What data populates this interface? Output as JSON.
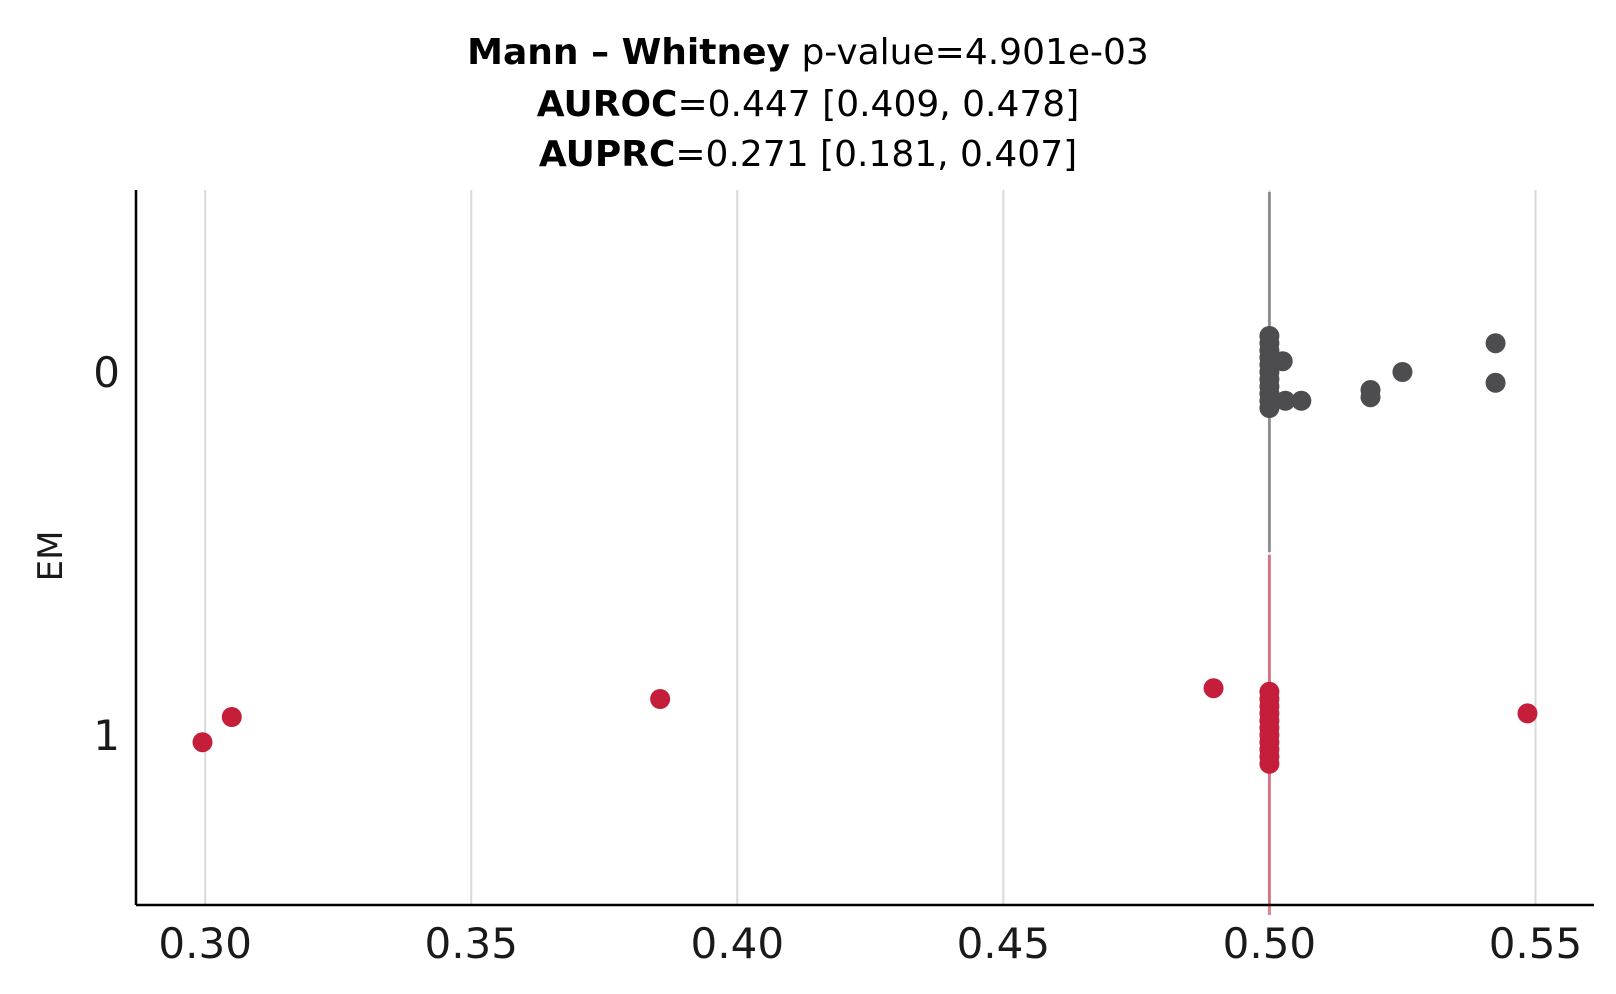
{
  "chart_data": {
    "type": "scatter",
    "subtype": "strip-plot",
    "title_lines": [
      {
        "bold": "Mann – Whitney",
        "rest": " p-value=4.901e-03"
      },
      {
        "bold": "AUROC",
        "rest": "=0.447 [0.409, 0.478]"
      },
      {
        "bold": "AUPRC",
        "rest": "=0.271 [0.181, 0.407]"
      }
    ],
    "xlabel": "",
    "ylabel": "EM",
    "xlim": [
      0.287,
      0.561
    ],
    "xticks": [
      0.3,
      0.35,
      0.4,
      0.45,
      0.5,
      0.55
    ],
    "xtick_labels": [
      "0.30",
      "0.35",
      "0.40",
      "0.45",
      "0.50",
      "0.55"
    ],
    "categories": [
      "0",
      "1"
    ],
    "grid": "vertical",
    "median_lines": [
      {
        "category": "0",
        "x": 0.5
      },
      {
        "category": "1",
        "x": 0.5
      }
    ],
    "series": [
      {
        "category": "0",
        "color": "#4d4d50",
        "points": [
          {
            "x": 0.5,
            "jitter": -0.08
          },
          {
            "x": 0.5,
            "jitter": -0.06
          },
          {
            "x": 0.5,
            "jitter": -0.04
          },
          {
            "x": 0.5,
            "jitter": -0.02
          },
          {
            "x": 0.5,
            "jitter": 0.0
          },
          {
            "x": 0.5,
            "jitter": 0.02
          },
          {
            "x": 0.5,
            "jitter": 0.04
          },
          {
            "x": 0.5,
            "jitter": 0.06
          },
          {
            "x": 0.5,
            "jitter": 0.08
          },
          {
            "x": 0.5,
            "jitter": 0.1
          },
          {
            "x": 0.5,
            "jitter": -0.1
          },
          {
            "x": 0.5025,
            "jitter": -0.03
          },
          {
            "x": 0.503,
            "jitter": 0.08
          },
          {
            "x": 0.506,
            "jitter": 0.08
          },
          {
            "x": 0.519,
            "jitter": 0.05
          },
          {
            "x": 0.519,
            "jitter": 0.07
          },
          {
            "x": 0.525,
            "jitter": 0.0
          },
          {
            "x": 0.5425,
            "jitter": -0.08
          },
          {
            "x": 0.5425,
            "jitter": 0.03
          }
        ]
      },
      {
        "category": "1",
        "color": "#c41e3a",
        "points": [
          {
            "x": 0.2995,
            "jitter": 0.02
          },
          {
            "x": 0.305,
            "jitter": -0.05
          },
          {
            "x": 0.3855,
            "jitter": -0.1
          },
          {
            "x": 0.4895,
            "jitter": -0.13
          },
          {
            "x": 0.5485,
            "jitter": -0.06
          },
          {
            "x": 0.5,
            "jitter": -0.12
          },
          {
            "x": 0.5,
            "jitter": -0.1
          },
          {
            "x": 0.5,
            "jitter": -0.08
          },
          {
            "x": 0.5,
            "jitter": -0.06
          },
          {
            "x": 0.5,
            "jitter": -0.04
          },
          {
            "x": 0.5,
            "jitter": -0.02
          },
          {
            "x": 0.5,
            "jitter": 0.0
          },
          {
            "x": 0.5,
            "jitter": 0.02
          },
          {
            "x": 0.5,
            "jitter": 0.04
          },
          {
            "x": 0.5,
            "jitter": 0.06
          },
          {
            "x": 0.5,
            "jitter": 0.08
          }
        ]
      }
    ]
  }
}
